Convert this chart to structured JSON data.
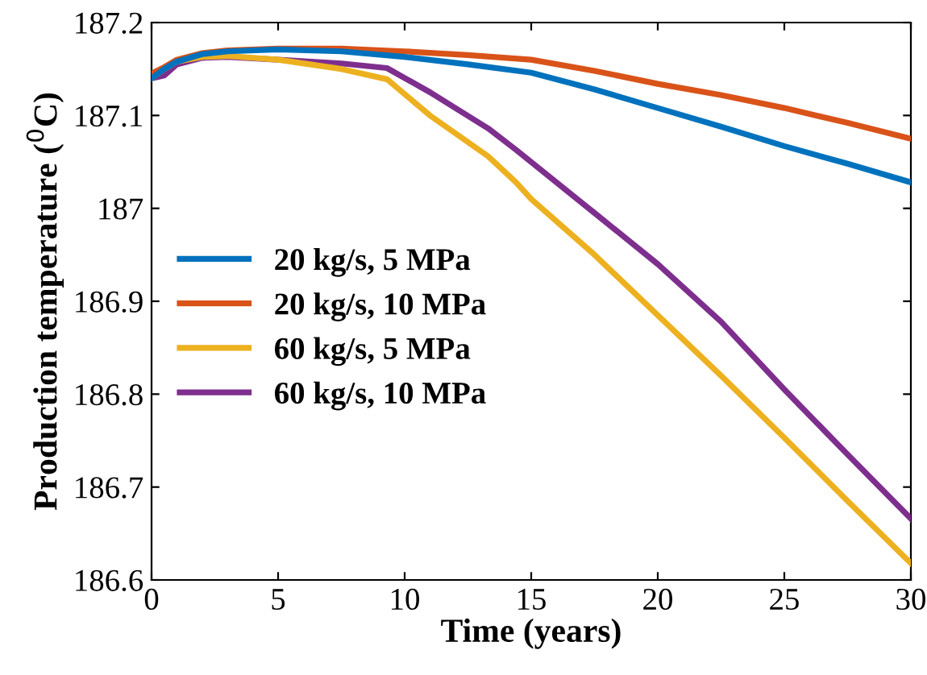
{
  "chart_data": {
    "type": "line",
    "xlabel": "Time (years)",
    "ylabel": "Production temperature ($^{0}$C)",
    "xlim": [
      0,
      30
    ],
    "ylim": [
      186.6,
      187.2
    ],
    "xticks": [
      0,
      5,
      10,
      15,
      20,
      25,
      30
    ],
    "yticks": [
      186.6,
      186.7,
      186.8,
      186.9,
      187,
      187.1,
      187.2
    ],
    "grid": false,
    "legend": "center left",
    "marker": "none",
    "line_style": "solid",
    "series": [
      {
        "name": "20 kg/s, 5 MPa",
        "color": "#0072bd",
        "x": [
          0,
          0.5,
          1,
          2,
          3,
          5,
          7.5,
          10,
          12.5,
          15,
          17.5,
          20,
          22.5,
          25,
          27.5,
          30
        ],
        "values": [
          187.14,
          187.15,
          187.158,
          187.166,
          187.169,
          187.171,
          187.169,
          187.163,
          187.155,
          187.146,
          187.128,
          187.108,
          187.088,
          187.067,
          187.048,
          187.028
        ]
      },
      {
        "name": "20 kg/s, 10 MPa",
        "color": "#d95319",
        "x": [
          0,
          0.5,
          1,
          2,
          3,
          5,
          7.5,
          10,
          12.5,
          15,
          17.5,
          20,
          22.5,
          25,
          27.5,
          30
        ],
        "values": [
          187.145,
          187.152,
          187.16,
          187.167,
          187.17,
          187.172,
          187.172,
          187.169,
          187.165,
          187.16,
          187.148,
          187.134,
          187.122,
          187.108,
          187.092,
          187.075
        ]
      },
      {
        "name": "60 kg/s, 5 MPa",
        "color": "#edb120",
        "x": [
          0,
          0.5,
          1,
          2,
          3,
          5,
          7.5,
          9.3,
          11,
          13.3,
          14.4,
          15,
          17.5,
          20,
          22.5,
          25,
          27.5,
          30
        ],
        "values": [
          187.14,
          187.15,
          187.158,
          187.163,
          187.164,
          187.16,
          187.15,
          187.139,
          187.1,
          187.056,
          187.028,
          187.01,
          186.95,
          186.885,
          186.82,
          186.753,
          186.685,
          186.618
        ]
      },
      {
        "name": "60 kg/s, 10 MPa",
        "color": "#7e2f8e",
        "x": [
          0,
          0.5,
          1,
          2,
          3,
          5,
          7.5,
          9.3,
          11,
          13.3,
          14.4,
          17.5,
          20,
          22.5,
          25,
          27.5,
          30
        ],
        "values": [
          187.14,
          187.143,
          187.155,
          187.162,
          187.163,
          187.16,
          187.156,
          187.151,
          187.125,
          187.086,
          187.063,
          186.995,
          186.94,
          186.878,
          186.805,
          186.735,
          186.666
        ]
      }
    ]
  }
}
